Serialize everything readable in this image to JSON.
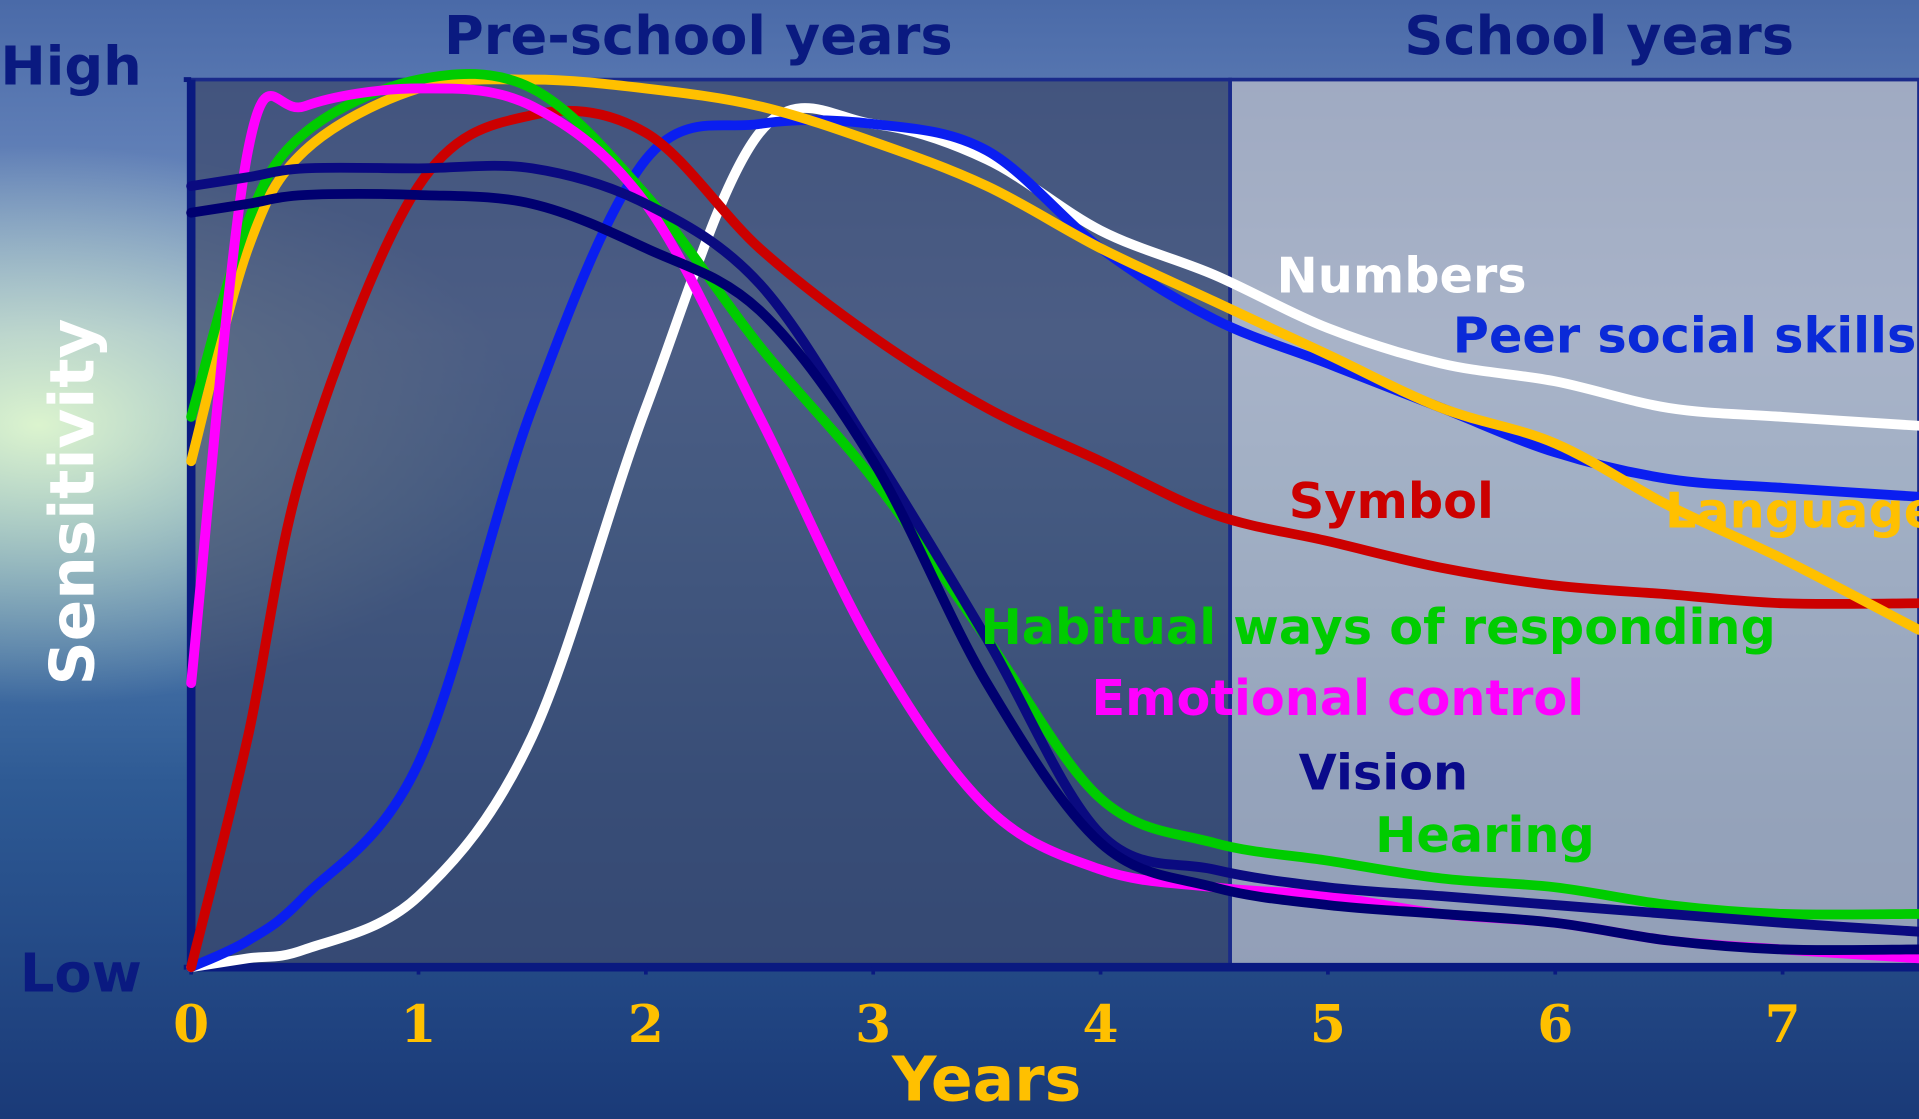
{
  "chart_data": {
    "type": "line",
    "x_label": "Years",
    "y_label": "Sensitivity",
    "x": [
      0,
      0.25,
      0.5,
      1,
      1.5,
      2,
      2.5,
      3,
      3.5,
      4,
      4.5,
      5,
      5.5,
      6,
      6.5,
      7,
      7.6
    ],
    "xlim": [
      0,
      7.6
    ],
    "xticks": [
      0,
      1,
      2,
      3,
      4,
      5,
      6,
      7
    ],
    "ylim": [
      0,
      100
    ],
    "yticks": [
      {
        "value": 0,
        "label": "Low"
      },
      {
        "value": 100,
        "label": "High"
      }
    ],
    "regions": [
      {
        "label": "Pre-school years",
        "range": [
          0,
          4.57
        ],
        "color": "#3c4a6e"
      },
      {
        "label": "School years",
        "range": [
          4.57,
          7.6
        ],
        "color": "#b8bcc8"
      }
    ],
    "series": [
      {
        "name": "Numbers",
        "color": "#ffffff",
        "label_color": "#ffffff",
        "values": [
          0,
          1,
          2,
          8,
          26,
          63,
          94,
          95,
          91,
          83,
          78,
          72,
          68,
          66,
          63,
          62,
          61
        ]
      },
      {
        "name": "Peer social skills",
        "color": "#0a1ef0",
        "label_color": "#0a2ad8",
        "values": [
          0,
          3,
          8,
          23,
          63,
          91,
          95,
          95,
          92,
          81,
          73,
          68,
          63,
          58,
          55,
          54,
          53
        ]
      },
      {
        "name": "Symbol",
        "color": "#cc0000",
        "label_color": "#cc0000",
        "values": [
          0,
          26,
          57,
          88,
          96,
          94,
          81,
          71,
          63,
          57,
          51,
          48,
          45,
          43,
          42,
          41,
          41
        ]
      },
      {
        "name": "Language",
        "color": "#ffc000",
        "label_color": "#ffc000",
        "values": [
          57,
          81,
          92,
          99,
          100,
          99,
          97,
          93,
          88,
          81,
          75,
          69,
          63,
          59,
          52,
          46,
          38
        ]
      },
      {
        "name": "Habitual ways of responding",
        "color": "#00cc00",
        "label_color": "#00cc00",
        "values": [
          62,
          84,
          94,
          100,
          99,
          87,
          70,
          55,
          37,
          19,
          14,
          12,
          10,
          9,
          7,
          6,
          6
        ]
      },
      {
        "name": "Emotional control",
        "color": "#ff00ff",
        "label_color": "#ff00ff",
        "values": [
          32,
          92,
          97,
          99,
          97,
          86,
          62,
          36,
          18,
          11,
          9,
          8,
          6,
          5,
          3,
          2,
          1
        ]
      },
      {
        "name": "Vision",
        "color": "#0a0a80",
        "label_color": "#0a0a8a",
        "values": [
          88,
          89,
          90,
          90,
          90,
          86,
          77,
          58,
          37,
          15,
          11,
          9,
          8,
          7,
          6,
          5,
          4
        ]
      },
      {
        "name": "Hearing",
        "color": "#000070",
        "label_color": "#00cc00",
        "values": [
          85,
          86,
          87,
          87,
          86,
          81,
          74,
          57,
          32,
          14,
          9,
          7,
          6,
          5,
          3,
          2,
          2
        ]
      }
    ]
  }
}
